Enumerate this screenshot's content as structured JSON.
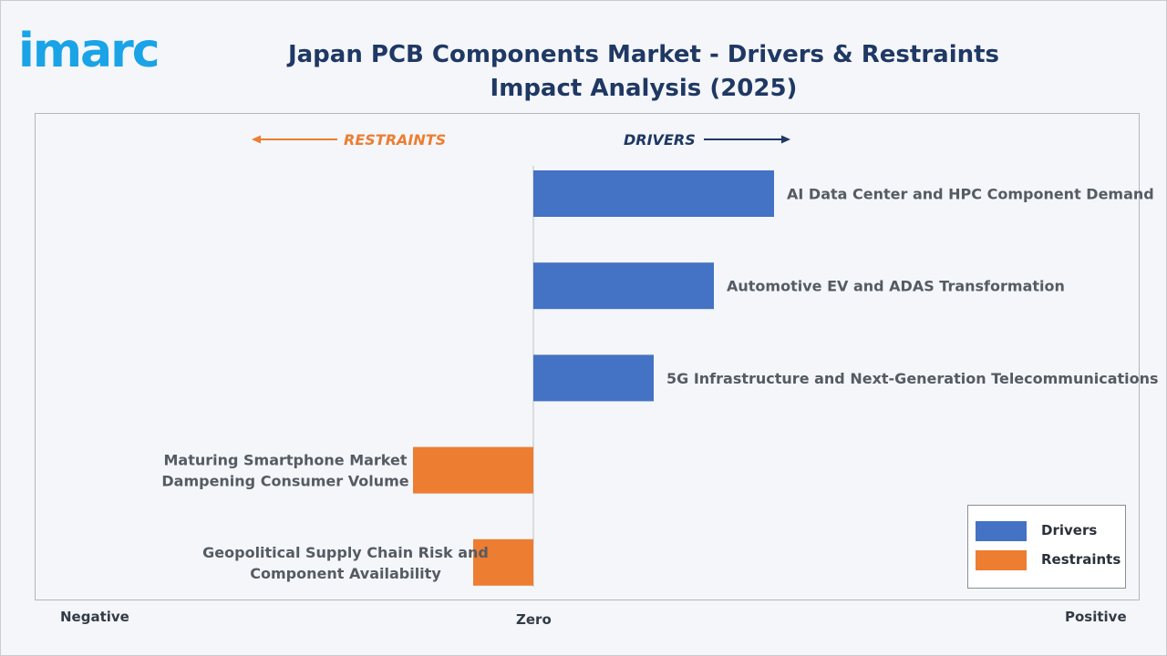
{
  "brand": {
    "logo_text": "imarc"
  },
  "title": "Japan PCB Components Market - Drivers & Restraints Impact Analysis (2025)",
  "direction_labels": {
    "restraints": "RESTRAINTS",
    "drivers": "DRIVERS"
  },
  "axis_labels": {
    "negative": "Negative",
    "zero": "Zero",
    "positive": "Positive"
  },
  "legend": [
    {
      "label": "Drivers",
      "color": "#4472c4"
    },
    {
      "label": "Restraints",
      "color": "#ed7d31"
    }
  ],
  "colors": {
    "drivers": "#4472c4",
    "restraints": "#ed7d31",
    "title": "#1f3864",
    "restraints_arrow": "#ed7d31",
    "drivers_arrow": "#1f3864"
  },
  "chart_data": {
    "type": "bar",
    "orientation": "horizontal",
    "title": "Japan PCB Components Market - Drivers & Restraints Impact Analysis (2025)",
    "xlabel": "",
    "ylabel": "",
    "xlim": [
      -8,
      10
    ],
    "grid": false,
    "legend_position": "bottom-right",
    "categories": [
      "AI Data Center and HPC Component Demand",
      "Automotive EV and ADAS Transformation",
      "5G Infrastructure and Next-Generation Telecommunications",
      "Maturing Smartphone Market Dampening Consumer Volume",
      "Geopolitical Supply Chain Risk and Component Availability"
    ],
    "series": [
      {
        "name": "Drivers",
        "values": [
          4.0,
          3.0,
          2.0,
          null,
          null
        ]
      },
      {
        "name": "Restraints",
        "values": [
          null,
          null,
          null,
          -2.0,
          -1.0
        ]
      }
    ]
  }
}
